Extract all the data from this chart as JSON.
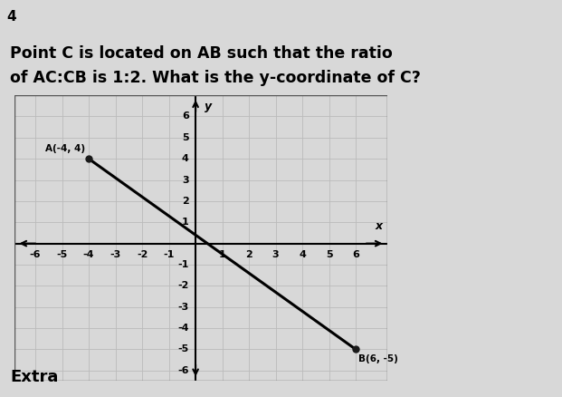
{
  "title_line1": "Point C is located on AB such that the ratio",
  "title_line2": "of AC:CB is 1:2. What is the y-coordinate of C?",
  "point_A": [
    -4,
    4
  ],
  "point_B": [
    6,
    -5
  ],
  "label_A": "A(-4, 4)",
  "label_B": "B(6, -5)",
  "label_y": "y",
  "label_x": "x",
  "xlim": [
    -6.8,
    7.2
  ],
  "ylim": [
    -6.5,
    7.0
  ],
  "xticks": [
    -6,
    -5,
    -4,
    -3,
    -2,
    -1,
    1,
    2,
    3,
    4,
    5,
    6
  ],
  "yticks": [
    -6,
    -5,
    -4,
    -3,
    -2,
    -1,
    1,
    2,
    3,
    4,
    5,
    6
  ],
  "line_color": "#000000",
  "point_color": "#1a1a1a",
  "grid_color": "#bbbbbb",
  "bg_color": "#f5f5f5",
  "plot_bg_color": "#e8e8e8",
  "title_fontsize": 12.5,
  "tick_fontsize": 8,
  "footer_text": "Extra",
  "question_number": "4",
  "page_bg": "#d8d8d8",
  "white_bg": "#f5f5f5"
}
